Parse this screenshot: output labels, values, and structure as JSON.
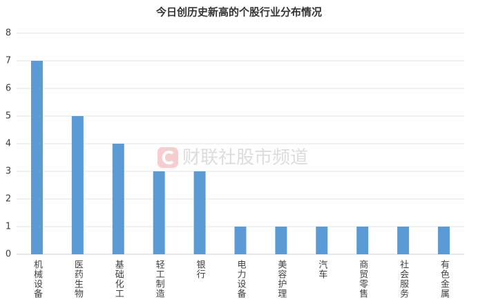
{
  "chart_data": {
    "type": "bar",
    "title": "今日创历史新高的个股行业分布情况",
    "watermark": "财联社股市频道",
    "categories": [
      "机械设备",
      "医药生物",
      "基础化工",
      "轻工制造",
      "银行",
      "电力设备",
      "美容护理",
      "汽车",
      "商贸零售",
      "社会服务",
      "有色金属"
    ],
    "values": [
      7,
      5,
      4,
      3,
      3,
      1,
      1,
      1,
      1,
      1,
      1
    ],
    "color": "#5b9bd5",
    "ylim": [
      0,
      8
    ],
    "yticks": [
      0,
      1,
      2,
      3,
      4,
      5,
      6,
      7,
      8
    ],
    "grid": true
  }
}
